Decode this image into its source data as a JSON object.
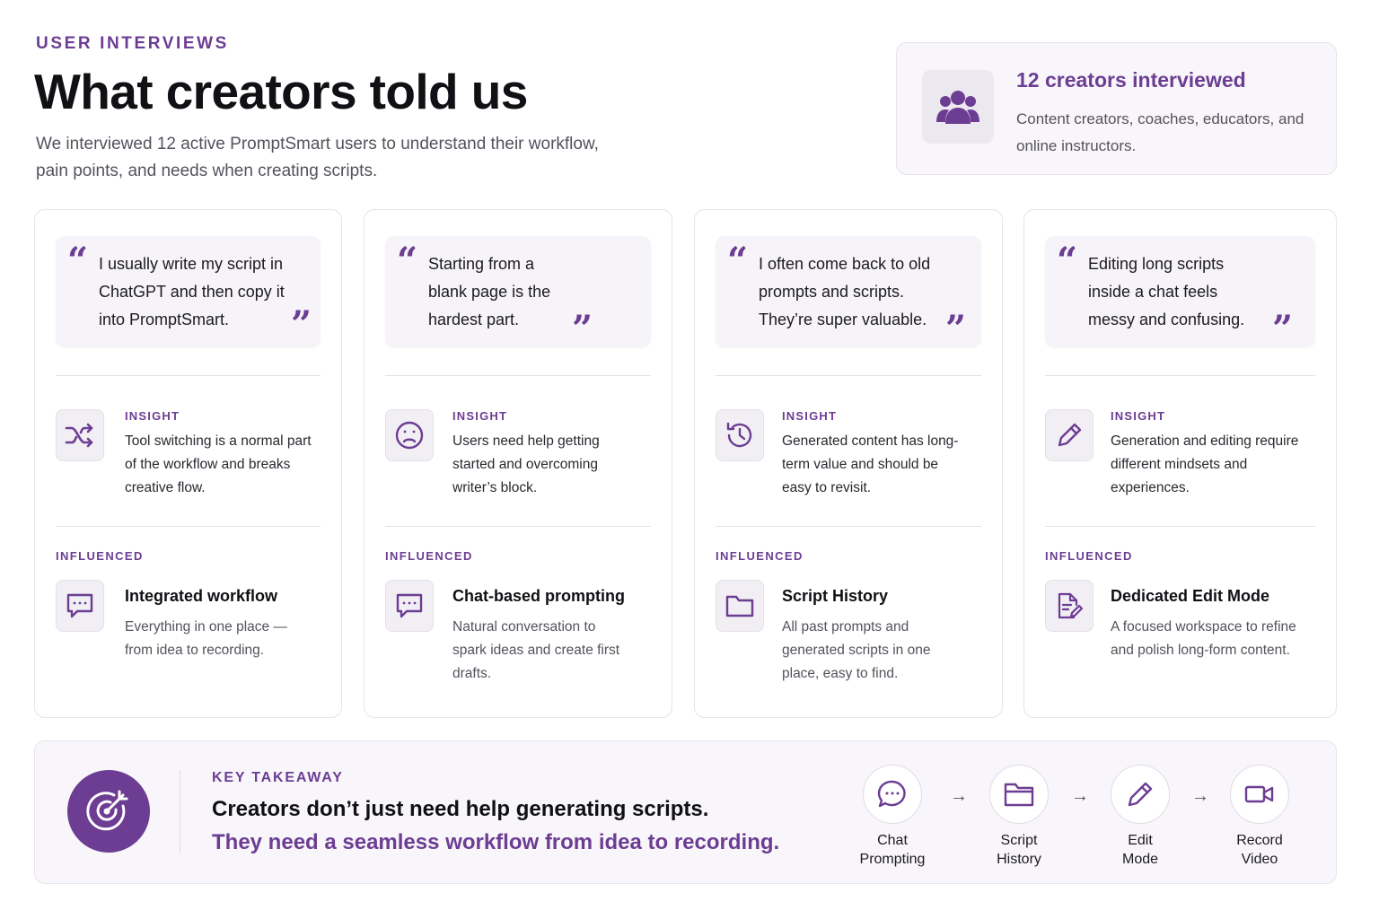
{
  "header": {
    "eyebrow": "USER INTERVIEWS",
    "title": "What creators told us",
    "subtitle": "We interviewed 12 active PromptSmart users to understand their workflow, pain points, and needs when creating scripts."
  },
  "stat": {
    "icon": "users-icon",
    "title": "12 creators interviewed",
    "text": "Content creators, coaches, educators, and online instructors."
  },
  "cards": [
    {
      "quote": "I usually write my script in ChatGPT and then copy it into PromptSmart.",
      "insight_label": "INSIGHT",
      "insight_icon": "shuffle-icon",
      "insight": "Tool switching is a normal part of the workflow and breaks creative flow.",
      "influenced_label": "INFLUENCED",
      "feature_icon": "chat-bubble-icon",
      "feature_title": "Integrated workflow",
      "feature_text": "Everything in one place — from idea to recording."
    },
    {
      "quote": "Starting from a blank page is the hardest part.",
      "insight_label": "INSIGHT",
      "insight_icon": "frown-icon",
      "insight": "Users need help getting started and overcoming writer’s block.",
      "influenced_label": "INFLUENCED",
      "feature_icon": "chat-bubble-icon",
      "feature_title": "Chat-based prompting",
      "feature_text": "Natural conversation to spark ideas and create first drafts."
    },
    {
      "quote": "I often come back to old prompts and scripts. They’re super valuable.",
      "insight_label": "INSIGHT",
      "insight_icon": "history-icon",
      "insight": "Generated content has long-term value and should be easy to revisit.",
      "influenced_label": "INFLUENCED",
      "feature_icon": "folder-icon",
      "feature_title": "Script History",
      "feature_text": "All past prompts and generated scripts in one place, easy to find."
    },
    {
      "quote": "Editing long scripts inside a chat feels messy and confusing.",
      "insight_label": "INSIGHT",
      "insight_icon": "pencil-icon",
      "insight": "Generation and editing require different mindsets and experiences.",
      "influenced_label": "INFLUENCED",
      "feature_icon": "document-edit-icon",
      "feature_title": "Dedicated Edit Mode",
      "feature_text": "A focused workspace to refine and polish long-form content."
    }
  ],
  "takeaway": {
    "icon": "target-icon",
    "label": "KEY TAKEAWAY",
    "line1": "Creators don’t just need help generating scripts.",
    "line2": "They need a seamless workflow from idea to recording.",
    "flow": [
      {
        "icon": "chat-bubble-icon",
        "line1": "Chat",
        "line2": "Prompting"
      },
      {
        "icon": "folder-icon",
        "line1": "Script",
        "line2": "History"
      },
      {
        "icon": "pencil-icon",
        "line1": "Edit",
        "line2": "Mode"
      },
      {
        "icon": "video-camera-icon",
        "line1": "Record",
        "line2": "Video"
      }
    ],
    "arrow": "→"
  }
}
